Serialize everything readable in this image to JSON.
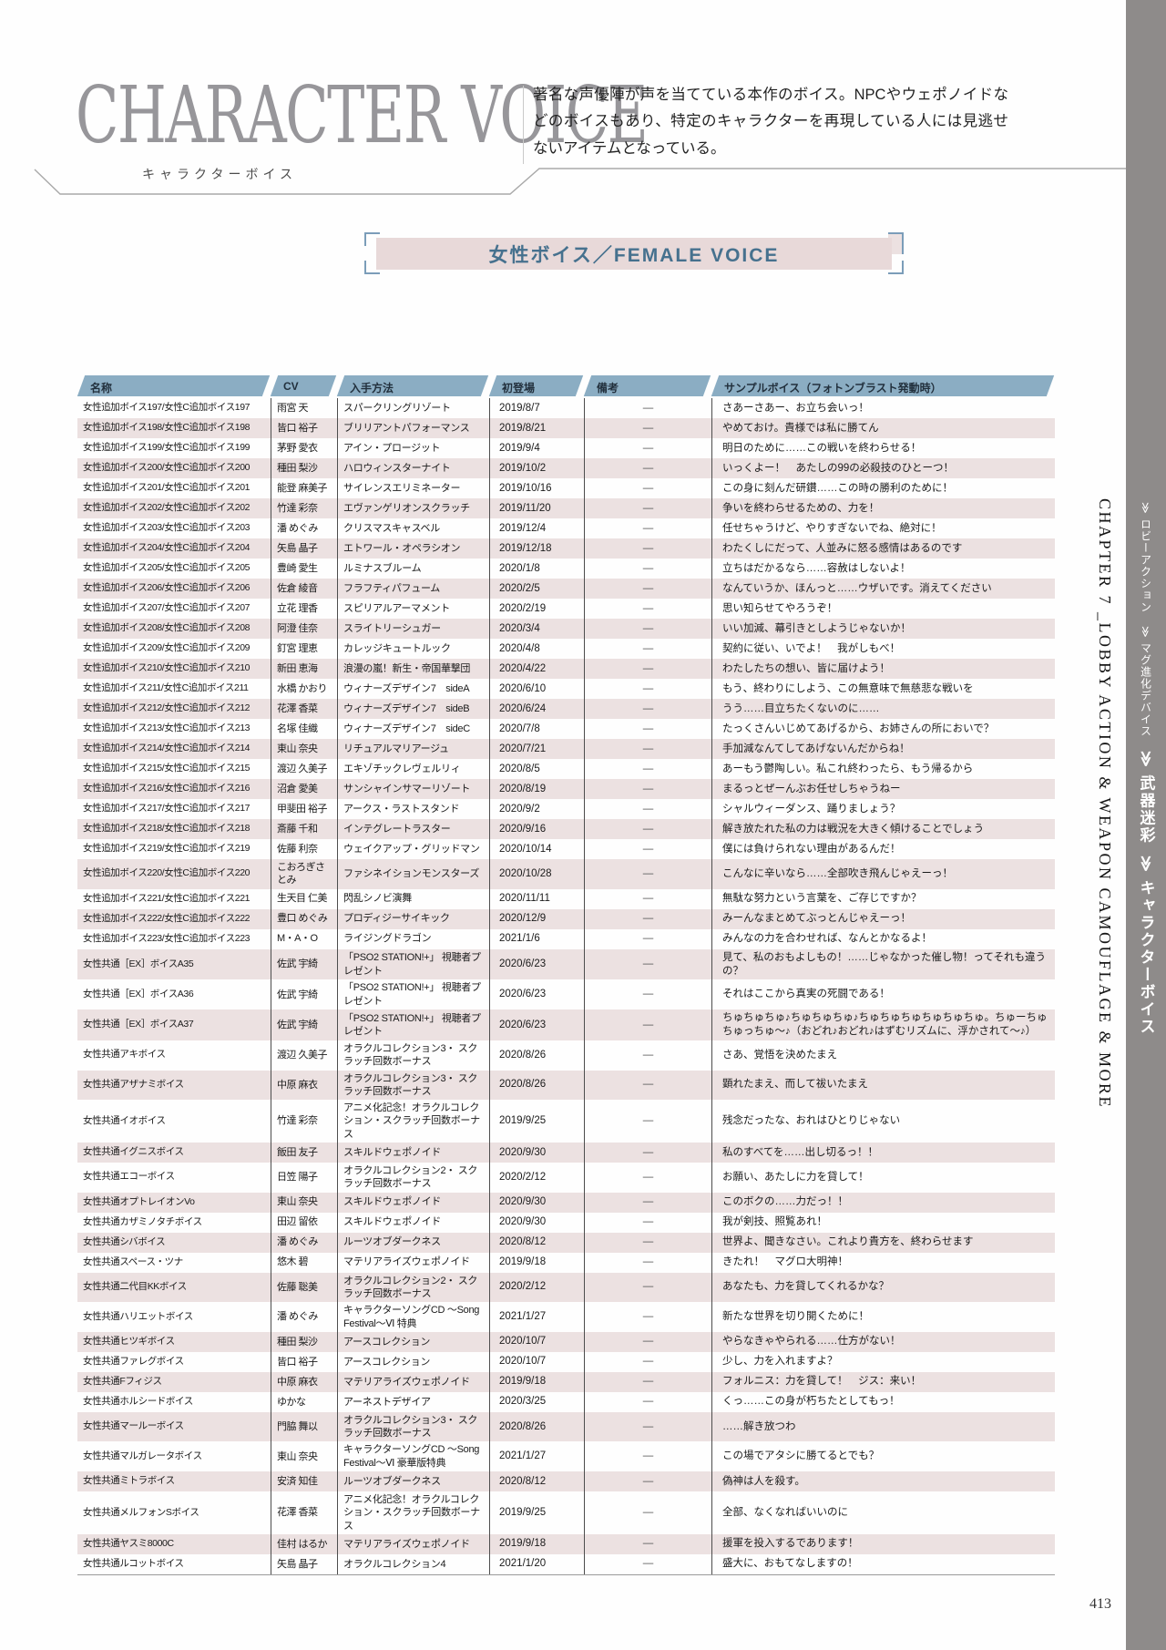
{
  "header": {
    "title": "CHARACTER VOICE",
    "subtitle": "キャラクターボイス",
    "description": "著名な声優陣が声を当てている本作のボイス。NPCやウェポノイドなどのボイスもあり、特定のキャラクターを再現している人には見逃せないアイテムとなっている。"
  },
  "section_banner": {
    "label": "女性ボイス／FEMALE VOICE"
  },
  "sidebar": {
    "chapter": "CHAPTER 7 _LOBBY ACTION & WEAPON CAMOUFLAGE & MORE",
    "nav_small": [
      "≫ ロビーアクション",
      "≫ マグ進化デバイス"
    ],
    "nav_large": [
      "≫ 武器迷彩",
      "≫ キャラクターボイス"
    ]
  },
  "page": {
    "number": "413"
  },
  "colors": {
    "table_header_blue": "#8badc3",
    "row_pink": "#ece1e1",
    "banner_pink": "#e8d9d9",
    "banner_text_blue": "#46718e",
    "strip_gray": "#8e8b8a",
    "title_gray": "#97969a"
  },
  "table": {
    "columns": [
      "名称",
      "CV",
      "入手方法",
      "初登場",
      "備考",
      "サンプルボイス（フォトンブラスト発動時）"
    ],
    "rows": [
      [
        "女性追加ボイス197/女性C追加ボイス197",
        "雨宮 天",
        "スパークリングリゾート",
        "2019/8/7",
        "―",
        "さあーさあー、お立ち会いっ！"
      ],
      [
        "女性追加ボイス198/女性C追加ボイス198",
        "皆口 裕子",
        "ブリリアントパフォーマンス",
        "2019/8/21",
        "―",
        "やめておけ。貴様では私に勝てん"
      ],
      [
        "女性追加ボイス199/女性C追加ボイス199",
        "茅野 愛衣",
        "アイン・プロージット",
        "2019/9/4",
        "―",
        "明日のために……この戦いを終わらせる！"
      ],
      [
        "女性追加ボイス200/女性C追加ボイス200",
        "種田 梨沙",
        "ハロウィンスターナイト",
        "2019/10/2",
        "―",
        "いっくよー！　あたしの99の必殺技のひとーつ！"
      ],
      [
        "女性追加ボイス201/女性C追加ボイス201",
        "能登 麻美子",
        "サイレンスエリミネーター",
        "2019/10/16",
        "―",
        "この身に刻んだ研鑽……この時の勝利のために！"
      ],
      [
        "女性追加ボイス202/女性C追加ボイス202",
        "竹達 彩奈",
        "エヴァンゲリオンスクラッチ",
        "2019/11/20",
        "―",
        "争いを終わらせるための、力を！"
      ],
      [
        "女性追加ボイス203/女性C追加ボイス203",
        "潘 めぐみ",
        "クリスマスキャスベル",
        "2019/12/4",
        "―",
        "任せちゃうけど、やりすぎないでね、絶対に！"
      ],
      [
        "女性追加ボイス204/女性C追加ボイス204",
        "矢島 晶子",
        "エトワール・オペラシオン",
        "2019/12/18",
        "―",
        "わたくしにだって、人並みに怒る感情はあるのです"
      ],
      [
        "女性追加ボイス205/女性C追加ボイス205",
        "豊崎 愛生",
        "ルミナスブルーム",
        "2020/1/8",
        "―",
        "立ちはだかるなら……容赦はしないよ！"
      ],
      [
        "女性追加ボイス206/女性C追加ボイス206",
        "佐倉 綾音",
        "フラフティパフューム",
        "2020/2/5",
        "―",
        "なんていうか、ほんっと……ウザいです。消えてください"
      ],
      [
        "女性追加ボイス207/女性C追加ボイス207",
        "立花 理香",
        "スピリアルアーマメント",
        "2020/2/19",
        "―",
        "思い知らせてやろうぞ！"
      ],
      [
        "女性追加ボイス208/女性C追加ボイス208",
        "阿澄 佳奈",
        "スライトリーシュガー",
        "2020/3/4",
        "―",
        "いい加減、幕引きとしようじゃないか！"
      ],
      [
        "女性追加ボイス209/女性C追加ボイス209",
        "釘宮 理恵",
        "カレッジキュートルック",
        "2020/4/8",
        "―",
        "契約に従い、いでよ！　我がしもべ！"
      ],
      [
        "女性追加ボイス210/女性C追加ボイス210",
        "新田 恵海",
        "浪漫の嵐！新生・帝国華撃団",
        "2020/4/22",
        "―",
        "わたしたちの想い、皆に届けよう！"
      ],
      [
        "女性追加ボイス211/女性C追加ボイス211",
        "水橋 かおり",
        "ウィナーズデザイン7　sideA",
        "2020/6/10",
        "―",
        "もう、終わりにしよう、この無意味で無慈悲な戦いを"
      ],
      [
        "女性追加ボイス212/女性C追加ボイス212",
        "花澤 香菜",
        "ウィナーズデザイン7　sideB",
        "2020/6/24",
        "―",
        "うう……目立ちたくないのに……"
      ],
      [
        "女性追加ボイス213/女性C追加ボイス213",
        "名塚 佳織",
        "ウィナーズデザイン7　sideC",
        "2020/7/8",
        "―",
        "たっくさんいじめてあげるから、お姉さんの所においで？"
      ],
      [
        "女性追加ボイス214/女性C追加ボイス214",
        "東山 奈央",
        "リチュアルマリアージュ",
        "2020/7/21",
        "―",
        "手加減なんてしてあげないんだからね！"
      ],
      [
        "女性追加ボイス215/女性C追加ボイス215",
        "渡辺 久美子",
        "エキゾチックレヴェルリィ",
        "2020/8/5",
        "―",
        "あーもう鬱陶しい。私これ終わったら、もう帰るから"
      ],
      [
        "女性追加ボイス216/女性C追加ボイス216",
        "沼倉 愛美",
        "サンシャインサマーリゾート",
        "2020/8/19",
        "―",
        "まるっとぜーんぶお任せしちゃうねー"
      ],
      [
        "女性追加ボイス217/女性C追加ボイス217",
        "甲斐田 裕子",
        "アークス・ラストスタンド",
        "2020/9/2",
        "―",
        "シャルウィーダンス、踊りましょう？"
      ],
      [
        "女性追加ボイス218/女性C追加ボイス218",
        "斎藤 千和",
        "インテグレートラスター",
        "2020/9/16",
        "―",
        "解き放たれた私の力は戦況を大きく傾けることでしょう"
      ],
      [
        "女性追加ボイス219/女性C追加ボイス219",
        "佐藤 利奈",
        "ウェイクアップ・グリッドマン",
        "2020/10/14",
        "―",
        "僕には負けられない理由があるんだ！"
      ],
      [
        "女性追加ボイス220/女性C追加ボイス220",
        "こおろぎさとみ",
        "ファシネイションモンスターズ",
        "2020/10/28",
        "―",
        "こんなに辛いなら……全部吹き飛んじゃえーっ！"
      ],
      [
        "女性追加ボイス221/女性C追加ボイス221",
        "生天目 仁美",
        "閃乱シノビ演舞",
        "2020/11/11",
        "―",
        "無駄な努力という言葉を、ご存じですか？"
      ],
      [
        "女性追加ボイス222/女性C追加ボイス222",
        "豊口 めぐみ",
        "プロディジーサイキック",
        "2020/12/9",
        "―",
        "みーんなまとめてぶっとんじゃえーっ！"
      ],
      [
        "女性追加ボイス223/女性C追加ボイス223",
        "M・A・O",
        "ライジングドラゴン",
        "2021/1/6",
        "―",
        "みんなの力を合わせれば、なんとかなるよ！"
      ],
      [
        "女性共通［EX］ボイスA35",
        "佐武 宇綺",
        "「PSO2 STATION!+」 視聴者プレゼント",
        "2020/6/23",
        "―",
        "見て、私のおもよしもの！……じゃなかった催し物！ってそれも違うの？"
      ],
      [
        "女性共通［EX］ボイスA36",
        "佐武 宇綺",
        "「PSO2 STATION!+」 視聴者プレゼント",
        "2020/6/23",
        "―",
        "それはここから真実の死闘である！"
      ],
      [
        "女性共通［EX］ボイスA37",
        "佐武 宇綺",
        "「PSO2 STATION!+」 視聴者プレゼント",
        "2020/6/23",
        "―",
        "ちゅちゅちゅ♪ちゅちゅちゅ♪ちゅちゅちゅちゅちゅちゅ。ちゅーちゅちゅっちゅ～♪（おどれ♪おどれ♪はずむリズムに、浮かされて～♪）"
      ],
      [
        "女性共通アキボイス",
        "渡辺 久美子",
        "オラクルコレクション3・ スクラッチ回数ボーナス",
        "2020/8/26",
        "―",
        "さあ、覚悟を決めたまえ"
      ],
      [
        "女性共通アザナミボイス",
        "中原 麻衣",
        "オラクルコレクション3・ スクラッチ回数ボーナス",
        "2020/8/26",
        "―",
        "顕れたまえ、而して祓いたまえ"
      ],
      [
        "女性共通イオボイス",
        "竹達 彩奈",
        "アニメ化記念！オラクルコレク ション・スクラッチ回数ボーナス",
        "2019/9/25",
        "―",
        "残念だったな、おれはひとりじゃない"
      ],
      [
        "女性共通イグニスボイス",
        "飯田 友子",
        "スキルドウェポノイド",
        "2020/9/30",
        "―",
        "私のすべてを……出し切るっ！！"
      ],
      [
        "女性共通エコーボイス",
        "日笠 陽子",
        "オラクルコレクション2・ スクラッチ回数ボーナス",
        "2020/2/12",
        "―",
        "お願い、あたしに力を貸して！"
      ],
      [
        "女性共通オプトレイオンVo",
        "東山 奈央",
        "スキルドウェポノイド",
        "2020/9/30",
        "―",
        "このボクの……力だっ！！"
      ],
      [
        "女性共通カザミノタチボイス",
        "田辺 留依",
        "スキルドウェポノイド",
        "2020/9/30",
        "―",
        "我が剣技、照覧あれ！"
      ],
      [
        "女性共通シバボイス",
        "潘 めぐみ",
        "ルーツオブダークネス",
        "2020/8/12",
        "―",
        "世界よ、聞きなさい。これより貴方を、終わらせます"
      ],
      [
        "女性共通スペース・ツナ",
        "悠木 碧",
        "マテリアライズウェポノイド",
        "2019/9/18",
        "―",
        "きたれ！　マグロ大明神！"
      ],
      [
        "女性共通二代目KKボイス",
        "佐藤 聡美",
        "オラクルコレクション2・ スクラッチ回数ボーナス",
        "2020/2/12",
        "―",
        "あなたも、力を貸してくれるかな？"
      ],
      [
        "女性共通ハリエットボイス",
        "潘 めぐみ",
        "キャラクターソングCD ～Song Festival～Ⅵ 特典",
        "2021/1/27",
        "―",
        "新たな世界を切り開くために！"
      ],
      [
        "女性共通ヒツギボイス",
        "種田 梨沙",
        "アースコレクション",
        "2020/10/7",
        "―",
        "やらなきゃやられる……仕方がない！"
      ],
      [
        "女性共通ファレグボイス",
        "皆口 裕子",
        "アースコレクション",
        "2020/10/7",
        "―",
        "少し、力を入れますよ？"
      ],
      [
        "女性共通Fフィジス",
        "中原 麻衣",
        "マテリアライズウェポノイド",
        "2019/9/18",
        "―",
        "フォルニス：力を貸して！　ジス：来い！"
      ],
      [
        "女性共通ホルシードボイス",
        "ゆかな",
        "アーネストデザイア",
        "2020/3/25",
        "―",
        "くっ……この身が朽ちたとしてもっ！"
      ],
      [
        "女性共通マールーボイス",
        "門脇 舞以",
        "オラクルコレクション3・ スクラッチ回数ボーナス",
        "2020/8/26",
        "―",
        "……解き放つわ"
      ],
      [
        "女性共通マルガレータボイス",
        "東山 奈央",
        "キャラクターソングCD ～Song Festival～Ⅵ 豪華版特典",
        "2021/1/27",
        "―",
        "この場でアタシに勝てるとでも？"
      ],
      [
        "女性共通ミトラボイス",
        "安済 知佳",
        "ルーツオブダークネス",
        "2020/8/12",
        "―",
        "偽神は人を殺す。"
      ],
      [
        "女性共通メルフォンSボイス",
        "花澤 香菜",
        "アニメ化記念！オラクルコレク ション・スクラッチ回数ボーナス",
        "2019/9/25",
        "―",
        "全部、なくなればいいのに"
      ],
      [
        "女性共通ヤスミ8000C",
        "佳村 はるか",
        "マテリアライズウェポノイド",
        "2019/9/18",
        "―",
        "援軍を投入するであります！"
      ],
      [
        "女性共通ルコットボイス",
        "矢島 晶子",
        "オラクルコレクション4",
        "2021/1/20",
        "―",
        "盛大に、おもてなしますの！"
      ]
    ]
  }
}
